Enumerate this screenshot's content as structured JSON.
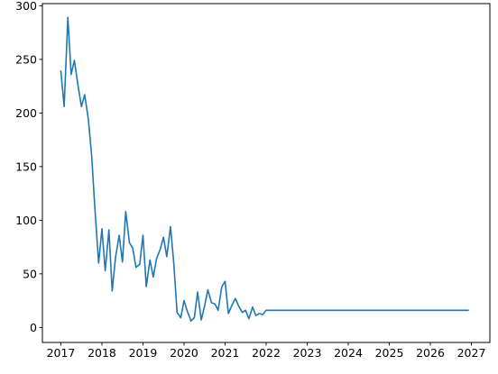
{
  "chart_data": {
    "type": "line",
    "title": "",
    "xlabel": "",
    "ylabel": "",
    "x_ticks": [
      "2017",
      "2018",
      "2019",
      "2020",
      "2021",
      "2022",
      "2023",
      "2024",
      "2025",
      "2026",
      "2027"
    ],
    "y_ticks": [
      0,
      50,
      100,
      150,
      200,
      250,
      300
    ],
    "xlim": [
      2016.55,
      2027.45
    ],
    "ylim": [
      -14,
      302
    ],
    "grid": false,
    "legend": "none",
    "series": [
      {
        "color": "#1f77b4",
        "x": [
          2017.0,
          2017.08,
          2017.17,
          2017.25,
          2017.33,
          2017.42,
          2017.5,
          2017.58,
          2017.67,
          2017.75,
          2017.83,
          2017.92,
          2018.0,
          2018.08,
          2018.17,
          2018.25,
          2018.33,
          2018.42,
          2018.5,
          2018.58,
          2018.67,
          2018.75,
          2018.83,
          2018.92,
          2019.0,
          2019.08,
          2019.17,
          2019.25,
          2019.33,
          2019.42,
          2019.5,
          2019.58,
          2019.67,
          2019.75,
          2019.83,
          2019.92,
          2020.0,
          2020.08,
          2020.17,
          2020.25,
          2020.33,
          2020.42,
          2020.5,
          2020.58,
          2020.67,
          2020.75,
          2020.83,
          2020.92,
          2021.0,
          2021.08,
          2021.17,
          2021.25,
          2021.33,
          2021.42,
          2021.5,
          2021.58,
          2021.67,
          2021.75,
          2021.83,
          2021.92,
          2022.0,
          2026.92
        ],
        "y": [
          239,
          206,
          289,
          236,
          249,
          225,
          206,
          217,
          194,
          160,
          110,
          60,
          92,
          53,
          91,
          34,
          65,
          86,
          61,
          108,
          79,
          74,
          56,
          59,
          86,
          38,
          63,
          47,
          64,
          73,
          84,
          66,
          94,
          60,
          14,
          9,
          25,
          15,
          6,
          9,
          33,
          7,
          20,
          35,
          23,
          22,
          16,
          38,
          43,
          13,
          21,
          27,
          20,
          14,
          16,
          8,
          19,
          11,
          13,
          12,
          16,
          16
        ]
      }
    ]
  }
}
